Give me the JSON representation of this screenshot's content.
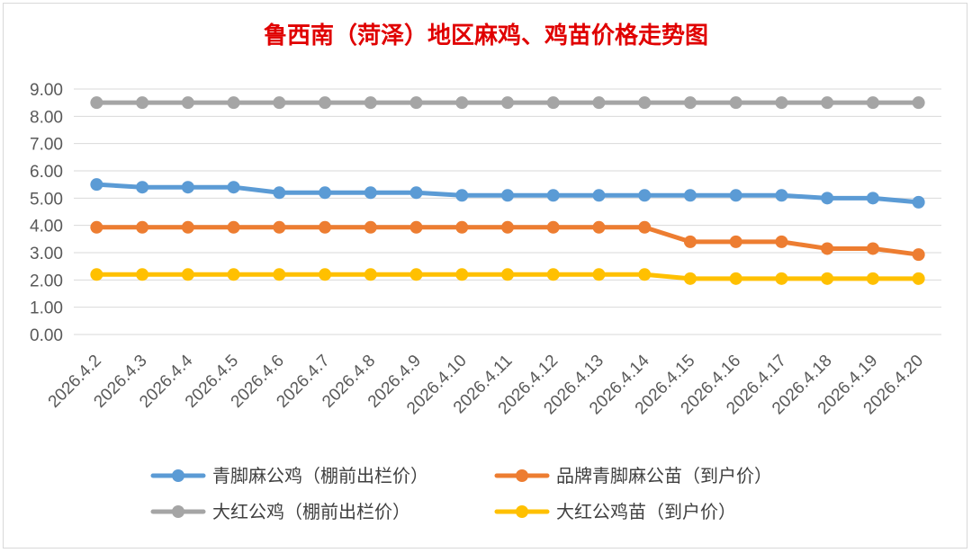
{
  "chart_data": {
    "type": "line",
    "title": "鲁西南（菏泽）地区麻鸡、鸡苗价格走势图",
    "xlabel": "",
    "ylabel": "",
    "ylim": [
      0,
      9
    ],
    "y_ticks": [
      "0.00",
      "1.00",
      "2.00",
      "3.00",
      "4.00",
      "5.00",
      "6.00",
      "7.00",
      "8.00",
      "9.00"
    ],
    "grid": true,
    "legend_position": "bottom",
    "categories": [
      "2026.4.2",
      "2026.4.3",
      "2026.4.4",
      "2026.4.5",
      "2026.4.6",
      "2026.4.7",
      "2026.4.8",
      "2026.4.9",
      "2026.4.10",
      "2026.4.11",
      "2026.4.12",
      "2026.4.13",
      "2026.4.14",
      "2026.4.15",
      "2026.4.16",
      "2026.4.17",
      "2026.4.18",
      "2026.4.19",
      "2026.4.20"
    ],
    "series": [
      {
        "name": "青脚麻公鸡（棚前出栏价）",
        "color": "#5b9bd5",
        "values": [
          5.5,
          5.4,
          5.4,
          5.4,
          5.2,
          5.2,
          5.2,
          5.2,
          5.1,
          5.1,
          5.1,
          5.1,
          5.1,
          5.1,
          5.1,
          5.1,
          5.0,
          5.0,
          4.85
        ]
      },
      {
        "name": "品牌青脚麻公苗（到户价）",
        "color": "#ed7d31",
        "values": [
          3.93,
          3.93,
          3.93,
          3.93,
          3.93,
          3.93,
          3.93,
          3.93,
          3.93,
          3.93,
          3.93,
          3.93,
          3.93,
          3.4,
          3.4,
          3.4,
          3.15,
          3.15,
          2.93
        ]
      },
      {
        "name": "大红公鸡（棚前出栏价）",
        "color": "#a5a5a5",
        "values": [
          8.5,
          8.5,
          8.5,
          8.5,
          8.5,
          8.5,
          8.5,
          8.5,
          8.5,
          8.5,
          8.5,
          8.5,
          8.5,
          8.5,
          8.5,
          8.5,
          8.5,
          8.5,
          8.5
        ]
      },
      {
        "name": "大红公鸡苗（到户价）",
        "color": "#ffc000",
        "values": [
          2.2,
          2.2,
          2.2,
          2.2,
          2.2,
          2.2,
          2.2,
          2.2,
          2.2,
          2.2,
          2.2,
          2.2,
          2.2,
          2.05,
          2.05,
          2.05,
          2.05,
          2.05,
          2.05
        ]
      }
    ]
  }
}
